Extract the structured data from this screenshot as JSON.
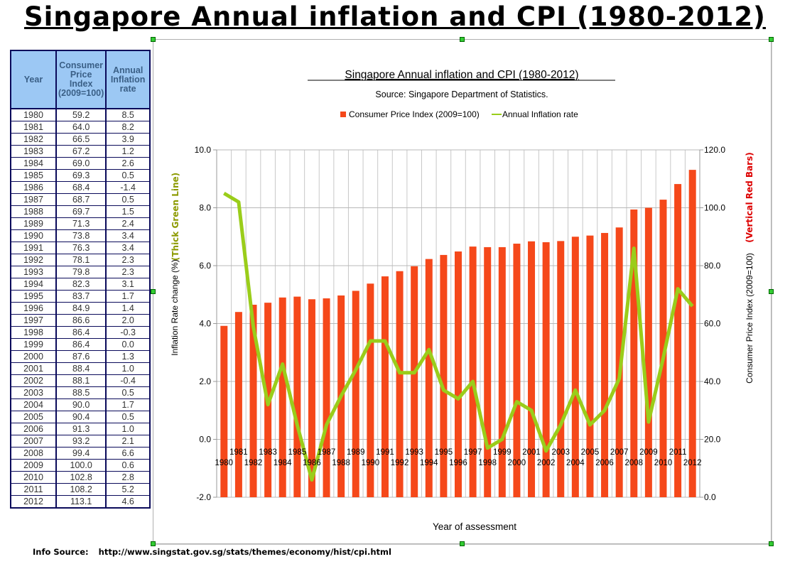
{
  "page_title": "Singapore Annual inflation and CPI (1980-2012)",
  "table": {
    "headers": [
      "Year",
      "Consumer Price Index (2009=100)",
      "Annual Inflation rate"
    ],
    "rows": [
      [
        "1980",
        "59.2",
        "8.5"
      ],
      [
        "1981",
        "64.0",
        "8.2"
      ],
      [
        "1982",
        "66.5",
        "3.9"
      ],
      [
        "1983",
        "67.2",
        "1.2"
      ],
      [
        "1984",
        "69.0",
        "2.6"
      ],
      [
        "1985",
        "69.3",
        "0.5"
      ],
      [
        "1986",
        "68.4",
        "-1.4"
      ],
      [
        "1987",
        "68.7",
        "0.5"
      ],
      [
        "1988",
        "69.7",
        "1.5"
      ],
      [
        "1989",
        "71.3",
        "2.4"
      ],
      [
        "1990",
        "73.8",
        "3.4"
      ],
      [
        "1991",
        "76.3",
        "3.4"
      ],
      [
        "1992",
        "78.1",
        "2.3"
      ],
      [
        "1993",
        "79.8",
        "2.3"
      ],
      [
        "1994",
        "82.3",
        "3.1"
      ],
      [
        "1995",
        "83.7",
        "1.7"
      ],
      [
        "1996",
        "84.9",
        "1.4"
      ],
      [
        "1997",
        "86.6",
        "2.0"
      ],
      [
        "1998",
        "86.4",
        "-0.3"
      ],
      [
        "1999",
        "86.4",
        "0.0"
      ],
      [
        "2000",
        "87.6",
        "1.3"
      ],
      [
        "2001",
        "88.4",
        "1.0"
      ],
      [
        "2002",
        "88.1",
        "-0.4"
      ],
      [
        "2003",
        "88.5",
        "0.5"
      ],
      [
        "2004",
        "90.0",
        "1.7"
      ],
      [
        "2005",
        "90.4",
        "0.5"
      ],
      [
        "2006",
        "91.3",
        "1.0"
      ],
      [
        "2007",
        "93.2",
        "2.1"
      ],
      [
        "2008",
        "99.4",
        "6.6"
      ],
      [
        "2009",
        "100.0",
        "0.6"
      ],
      [
        "2010",
        "102.8",
        "2.8"
      ],
      [
        "2011",
        "108.2",
        "5.2"
      ],
      [
        "2012",
        "113.1",
        "4.6"
      ]
    ]
  },
  "chart_data": {
    "type": "bar+line",
    "title": "Singapore Annual inflation and CPI (1980-2012)",
    "subtitle": "Source: Singapore Department of Statistics.",
    "xlabel": "Year of assessment",
    "ylabel_left": "Inflation Rate change (%)",
    "ylabel_left_note": "(Thick Green Line)",
    "ylabel_right": "Consumer Price Index (2009=100)",
    "ylabel_right_note": "(Vertical Red Bars)",
    "ylim_left": [
      -2,
      10
    ],
    "yticks_left": [
      "-2.0",
      "0.0",
      "2.0",
      "4.0",
      "6.0",
      "8.0",
      "10.0"
    ],
    "ylim_right": [
      0,
      120
    ],
    "yticks_right": [
      "0.0",
      "20.0",
      "40.0",
      "60.0",
      "80.0",
      "100.0",
      "120.0"
    ],
    "grid": true,
    "legend_position": "top",
    "categories": [
      "1980",
      "1981",
      "1982",
      "1983",
      "1984",
      "1985",
      "1986",
      "1987",
      "1988",
      "1989",
      "1990",
      "1991",
      "1992",
      "1993",
      "1994",
      "1995",
      "1996",
      "1997",
      "1998",
      "1999",
      "2000",
      "2001",
      "2002",
      "2003",
      "2004",
      "2005",
      "2006",
      "2007",
      "2008",
      "2009",
      "2010",
      "2011",
      "2012"
    ],
    "series": [
      {
        "name": "Consumer Price Index (2009=100)",
        "type": "bar",
        "axis": "right",
        "color": "#f5481a",
        "values": [
          59.2,
          64.0,
          66.5,
          67.2,
          69.0,
          69.3,
          68.4,
          68.7,
          69.7,
          71.3,
          73.8,
          76.3,
          78.1,
          79.8,
          82.3,
          83.7,
          84.9,
          86.6,
          86.4,
          86.4,
          87.6,
          88.4,
          88.1,
          88.5,
          90.0,
          90.4,
          91.3,
          93.2,
          99.4,
          100.0,
          102.8,
          108.2,
          113.1
        ]
      },
      {
        "name": "Annual Inflation rate",
        "type": "line",
        "axis": "left",
        "color": "#9acd1a",
        "values": [
          8.5,
          8.2,
          3.9,
          1.2,
          2.6,
          0.5,
          -1.4,
          0.5,
          1.5,
          2.4,
          3.4,
          3.4,
          2.3,
          2.3,
          3.1,
          1.7,
          1.4,
          2.0,
          -0.3,
          0.0,
          1.3,
          1.0,
          -0.4,
          0.5,
          1.7,
          0.5,
          1.0,
          2.1,
          6.6,
          0.6,
          2.8,
          5.2,
          4.6
        ]
      }
    ]
  },
  "info_source": {
    "label": "Info Source:",
    "url": "http://www.singstat.gov.sg/stats/themes/economy/hist/cpi.html"
  }
}
